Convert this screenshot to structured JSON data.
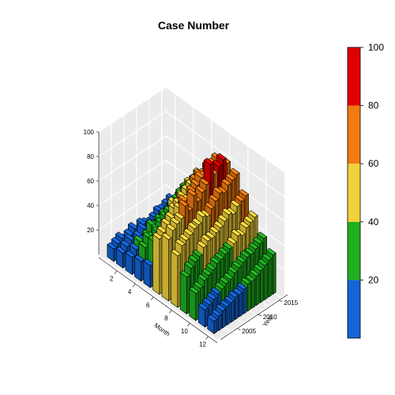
{
  "chart_data": {
    "type": "bar3d",
    "title": "Case Number",
    "xlabel": "Month",
    "ylabel": "Year",
    "zlabel": "",
    "x": [
      1,
      2,
      3,
      4,
      5,
      6,
      7,
      8,
      9,
      10,
      11,
      12
    ],
    "x_tick_labels": [
      "2",
      "4",
      "6",
      "8",
      "10",
      "12"
    ],
    "y": [
      2002,
      2003,
      2004,
      2005,
      2006,
      2007,
      2008,
      2009,
      2010,
      2011,
      2012,
      2013,
      2014,
      2015,
      2016
    ],
    "y_tick_labels": [
      "2005",
      "2010",
      "2015"
    ],
    "z_tick_labels": [
      "20",
      "40",
      "60",
      "80",
      "100"
    ],
    "zlim": [
      0,
      100
    ],
    "colorbar": {
      "ticks": [
        "20",
        "40",
        "60",
        "80",
        "100"
      ],
      "range": [
        0,
        100
      ],
      "bins": [
        {
          "from": 0,
          "to": 20,
          "color": "#1565d8"
        },
        {
          "from": 20,
          "to": 40,
          "color": "#1fb01f"
        },
        {
          "from": 40,
          "to": 60,
          "color": "#f2d23a"
        },
        {
          "from": 60,
          "to": 80,
          "color": "#f07b10"
        },
        {
          "from": 80,
          "to": 100,
          "color": "#e00000"
        }
      ]
    },
    "values": [
      [
        10,
        12,
        14,
        16,
        18,
        45,
        50,
        42,
        30,
        22,
        14,
        10
      ],
      [
        12,
        15,
        18,
        25,
        35,
        48,
        55,
        48,
        35,
        24,
        16,
        12
      ],
      [
        14,
        18,
        22,
        30,
        40,
        52,
        58,
        50,
        38,
        28,
        18,
        14
      ],
      [
        10,
        14,
        20,
        28,
        38,
        55,
        60,
        52,
        40,
        30,
        20,
        15
      ],
      [
        12,
        16,
        22,
        32,
        42,
        50,
        68,
        55,
        45,
        32,
        22,
        16
      ],
      [
        15,
        20,
        28,
        35,
        45,
        58,
        62,
        56,
        48,
        35,
        24,
        18
      ],
      [
        10,
        14,
        25,
        38,
        50,
        62,
        72,
        60,
        48,
        36,
        25,
        18
      ],
      [
        14,
        18,
        28,
        40,
        52,
        60,
        65,
        58,
        50,
        38,
        28,
        20
      ],
      [
        12,
        16,
        30,
        45,
        55,
        65,
        70,
        62,
        52,
        40,
        30,
        22
      ],
      [
        10,
        15,
        28,
        42,
        58,
        68,
        74,
        66,
        55,
        42,
        32,
        22
      ],
      [
        12,
        18,
        32,
        46,
        60,
        72,
        88,
        70,
        58,
        46,
        34,
        24
      ],
      [
        15,
        20,
        35,
        48,
        62,
        70,
        78,
        68,
        56,
        44,
        34,
        26
      ],
      [
        14,
        22,
        38,
        50,
        64,
        74,
        82,
        72,
        60,
        48,
        36,
        28
      ],
      [
        16,
        24,
        40,
        52,
        62,
        76,
        85,
        74,
        62,
        50,
        38,
        30
      ],
      [
        18,
        26,
        42,
        55,
        66,
        78,
        80,
        76,
        64,
        52,
        40,
        32
      ]
    ]
  }
}
